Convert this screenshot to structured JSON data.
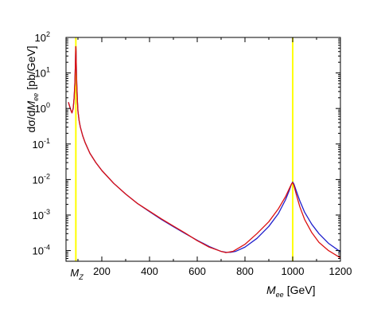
{
  "chart_data": {
    "type": "line",
    "xlabel": {
      "symbol": "M",
      "subscript": "ee",
      "unit": "[GeV]"
    },
    "ylabel": {
      "prefix": "dσ/d",
      "symbol": "M",
      "subscript": "ee",
      "unit": "[pb/GeV]"
    },
    "x_scale": "linear",
    "y_scale": "log",
    "xlim": [
      50,
      1200
    ],
    "ylim": [
      5e-05,
      100
    ],
    "x_ticks": [
      200,
      400,
      600,
      800,
      1000,
      1200
    ],
    "x_special_tick": {
      "value": 91.2,
      "symbol": "M",
      "subscript": "Z"
    },
    "y_ticks": [
      {
        "value": 0.0001,
        "base": "10",
        "exp": "-4"
      },
      {
        "value": 0.001,
        "base": "10",
        "exp": "-3"
      },
      {
        "value": 0.01,
        "base": "10",
        "exp": "-2"
      },
      {
        "value": 0.1,
        "base": "10",
        "exp": "-1"
      },
      {
        "value": 1,
        "base": "10",
        "exp": "0"
      },
      {
        "value": 10,
        "base": "10",
        "exp": "1"
      },
      {
        "value": 100,
        "base": "10",
        "exp": "2"
      }
    ],
    "vertical_lines": [
      {
        "x": 91.2,
        "color": "#ffff00"
      },
      {
        "x": 1000,
        "color": "#ffff00"
      }
    ],
    "series": [
      {
        "color": "#1f1fcc",
        "points": [
          [
            60,
            1.5
          ],
          [
            70,
            0.9
          ],
          [
            75,
            0.75
          ],
          [
            80,
            1.0
          ],
          [
            84,
            2.0
          ],
          [
            87,
            5.0
          ],
          [
            89,
            15
          ],
          [
            90.5,
            45
          ],
          [
            91.2,
            55
          ],
          [
            92,
            40
          ],
          [
            93.5,
            12
          ],
          [
            95,
            5
          ],
          [
            98,
            1.5
          ],
          [
            100,
            0.85
          ],
          [
            105,
            0.45
          ],
          [
            110,
            0.3
          ],
          [
            120,
            0.17
          ],
          [
            130,
            0.11
          ],
          [
            150,
            0.055
          ],
          [
            175,
            0.03
          ],
          [
            200,
            0.018
          ],
          [
            250,
            0.0078
          ],
          [
            300,
            0.0039
          ],
          [
            350,
            0.0021
          ],
          [
            400,
            0.00125
          ],
          [
            450,
            0.00075
          ],
          [
            500,
            0.00047
          ],
          [
            550,
            0.0003
          ],
          [
            600,
            0.000195
          ],
          [
            650,
            0.00013
          ],
          [
            700,
            9.45e-05
          ],
          [
            720,
            9e-05
          ],
          [
            740,
            8.95e-05
          ],
          [
            760,
            9.45e-05
          ],
          [
            800,
            0.000125
          ],
          [
            850,
            0.00022
          ],
          [
            900,
            0.00048
          ],
          [
            940,
            0.0011
          ],
          [
            970,
            0.0027
          ],
          [
            985,
            0.0048
          ],
          [
            995,
            0.0075
          ],
          [
            1000,
            0.0085
          ],
          [
            1005,
            0.0075
          ],
          [
            1015,
            0.0048
          ],
          [
            1030,
            0.0025
          ],
          [
            1050,
            0.0012
          ],
          [
            1080,
            0.00055
          ],
          [
            1110,
            0.0003
          ],
          [
            1150,
            0.00016
          ],
          [
            1200,
            9.25e-05
          ]
        ]
      },
      {
        "color": "#dd1111",
        "points": [
          [
            60,
            1.5
          ],
          [
            70,
            0.9
          ],
          [
            75,
            0.75
          ],
          [
            80,
            1.0
          ],
          [
            84,
            2.0
          ],
          [
            87,
            5.0
          ],
          [
            89,
            15
          ],
          [
            90.5,
            45
          ],
          [
            91.2,
            55
          ],
          [
            92,
            40
          ],
          [
            93.5,
            12
          ],
          [
            95,
            5
          ],
          [
            98,
            1.5
          ],
          [
            100,
            0.85
          ],
          [
            105,
            0.45
          ],
          [
            110,
            0.3
          ],
          [
            120,
            0.17
          ],
          [
            130,
            0.11
          ],
          [
            150,
            0.055
          ],
          [
            175,
            0.03
          ],
          [
            200,
            0.018
          ],
          [
            250,
            0.0078
          ],
          [
            300,
            0.0039
          ],
          [
            350,
            0.0021
          ],
          [
            400,
            0.00128
          ],
          [
            450,
            0.00078
          ],
          [
            500,
            0.00049
          ],
          [
            550,
            0.00031
          ],
          [
            600,
            0.00019
          ],
          [
            650,
            0.000125
          ],
          [
            700,
            9.5e-05
          ],
          [
            720,
            8.75e-05
          ],
          [
            750,
            9.5e-05
          ],
          [
            800,
            0.00015
          ],
          [
            850,
            0.0003
          ],
          [
            900,
            0.00065
          ],
          [
            940,
            0.0015
          ],
          [
            970,
            0.0033
          ],
          [
            985,
            0.0054
          ],
          [
            995,
            0.0075
          ],
          [
            1000,
            0.0082
          ],
          [
            1005,
            0.0068
          ],
          [
            1015,
            0.0038
          ],
          [
            1030,
            0.0017
          ],
          [
            1050,
            0.00075
          ],
          [
            1080,
            0.00032
          ],
          [
            1110,
            0.00017
          ],
          [
            1150,
            0.0001
          ],
          [
            1200,
            6.25e-05
          ]
        ]
      }
    ]
  }
}
